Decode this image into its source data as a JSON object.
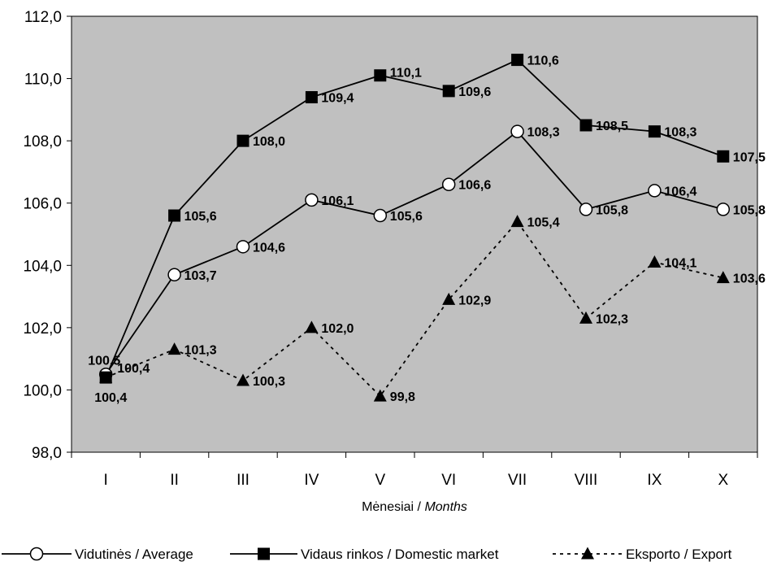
{
  "chart_data": {
    "type": "line",
    "xlabel": "Mėnesiai / ",
    "xlabel_italic": "Months",
    "ylim": [
      98,
      112
    ],
    "yticks": [
      "98,0",
      "100,0",
      "102,0",
      "104,0",
      "106,0",
      "108,0",
      "110,0",
      "112,0"
    ],
    "ytick_values": [
      98,
      100,
      102,
      104,
      106,
      108,
      110,
      112
    ],
    "categories": [
      "I",
      "II",
      "III",
      "IV",
      "V",
      "VI",
      "VII",
      "VIII",
      "IX",
      "X"
    ],
    "grid": false,
    "plot_background": "#c0c0c0",
    "legend_position": "bottom",
    "series": [
      {
        "name": "Vidutinės / Average",
        "marker": "circle-open",
        "line": "solid",
        "values": [
          100.5,
          103.7,
          104.6,
          106.1,
          105.6,
          106.6,
          108.3,
          105.8,
          106.4,
          105.8
        ],
        "labels": [
          "100,5",
          "103,7",
          "104,6",
          "106,1",
          "105,6",
          "106,6",
          "108,3",
          "105,8",
          "106,4",
          "105,8"
        ]
      },
      {
        "name": "Vidaus rinkos / Domestic market",
        "marker": "square-filled",
        "line": "solid",
        "values": [
          100.4,
          105.6,
          108.0,
          109.4,
          110.1,
          109.6,
          110.6,
          108.5,
          108.3,
          107.5
        ],
        "labels": [
          "100,4",
          "105,6",
          "108,0",
          "109,4",
          "110,1",
          "109,6",
          "110,6",
          "108,5",
          "108,3",
          "107,5"
        ]
      },
      {
        "name": "Eksporto / Export",
        "marker": "triangle-filled",
        "line": "dashed",
        "values": [
          100.4,
          101.3,
          100.3,
          102.0,
          99.8,
          102.9,
          105.4,
          102.3,
          104.1,
          103.6
        ],
        "labels": [
          "100,4",
          "101,3",
          "100,3",
          "102,0",
          "99,8",
          "102,9",
          "105,4",
          "102,3",
          "104,1",
          "103,6"
        ]
      }
    ]
  }
}
